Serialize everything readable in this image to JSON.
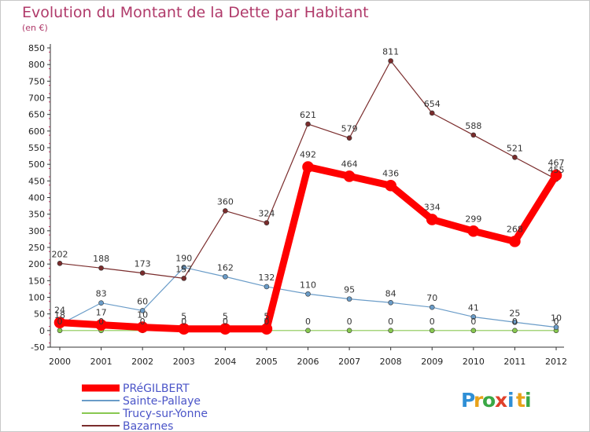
{
  "header": {
    "title": "Evolution du Montant de la Dette par Habitant",
    "subtitle": "(en €)"
  },
  "brand": {
    "letters": [
      "P",
      "r",
      "o",
      "x",
      "i",
      "t",
      "i"
    ],
    "colors": [
      "#2f8fd6",
      "#e8a21a",
      "#3aa845",
      "#e0402a",
      "#2f8fd6",
      "#e8a21a",
      "#3aa845"
    ]
  },
  "chart_data": {
    "type": "line",
    "title": "Evolution du Montant de la Dette par Habitant",
    "subtitle": "(en €)",
    "xlabel": "",
    "ylabel": "",
    "x": [
      "2000",
      "2001",
      "2002",
      "2003",
      "2004",
      "2005",
      "2006",
      "2007",
      "2008",
      "2009",
      "2010",
      "2011",
      "2012"
    ],
    "yticks": [
      -50,
      0,
      50,
      100,
      150,
      200,
      250,
      300,
      350,
      400,
      450,
      500,
      550,
      600,
      650,
      700,
      750,
      800,
      850
    ],
    "ylim": [
      -50,
      850
    ],
    "grid": false,
    "legend": "bottom-left",
    "series": [
      {
        "name": "PRéGILBERT",
        "color": "#ff0000",
        "width": 9,
        "values": [
          24,
          17,
          10,
          5,
          5,
          5,
          492,
          464,
          436,
          334,
          299,
          268,
          467
        ]
      },
      {
        "name": "Sainte-Pallaye",
        "color": "#6a9cc8",
        "width": 1.2,
        "values": [
          18,
          83,
          60,
          190,
          162,
          132,
          110,
          95,
          84,
          70,
          41,
          25,
          10
        ]
      },
      {
        "name": "Trucy-sur-Yonne",
        "color": "#88c850",
        "width": 1.2,
        "values": [
          0,
          0,
          0,
          0,
          0,
          0,
          0,
          0,
          0,
          0,
          0,
          0,
          0
        ]
      },
      {
        "name": "Bazarnes",
        "color": "#7a2c2c",
        "width": 1.2,
        "values": [
          202,
          188,
          173,
          157,
          360,
          324,
          621,
          579,
          811,
          654,
          588,
          521,
          455
        ]
      }
    ]
  }
}
